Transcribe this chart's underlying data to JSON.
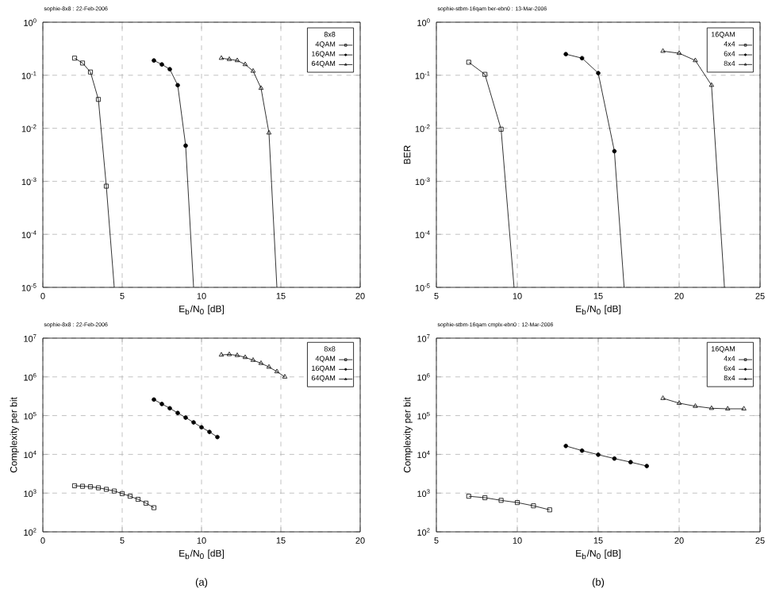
{
  "chart_data": [
    {
      "type": "line",
      "title": "sophie-8x8 : 22-Feb-2006",
      "xlabel": "E$_{b}$/N$_{0}$ [dB]",
      "legend_title": "8x8",
      "log": true,
      "grid": true,
      "legend": "top right",
      "line_style": "solid",
      "xlim": [
        0,
        20
      ],
      "xticks": [
        0,
        5,
        10,
        15,
        20
      ],
      "ylim": [
        1e-05,
        1
      ],
      "yticks": [
        {
          "value": 1e-05,
          "label": "10$^{-5}$"
        },
        {
          "value": 0.0001,
          "label": "10$^{-4}$"
        },
        {
          "value": 0.001,
          "label": "10$^{-3}$"
        },
        {
          "value": 0.01,
          "label": "10$^{-2}$"
        },
        {
          "value": 0.1,
          "label": "10$^{-1}$"
        },
        {
          "value": 1,
          "label": "10$^{0}$"
        }
      ],
      "series": [
        {
          "name": "4QAM",
          "color": "#000000",
          "marker": "square",
          "x": [
            2,
            2.5,
            3,
            3.5,
            4
          ],
          "values": [
            0.21,
            0.17,
            0.115,
            0.035,
            0.00081
          ]
        },
        {
          "name": "16QAM",
          "color": "#000000",
          "marker": "circle",
          "x": [
            7,
            7.5,
            8,
            8.5,
            9
          ],
          "values": [
            0.19,
            0.16,
            0.13,
            0.065,
            0.0047
          ]
        },
        {
          "name": "64QAM",
          "color": "#000000",
          "marker": "triangle",
          "x": [
            11.25,
            11.75,
            12.25,
            12.75,
            13.25,
            13.75,
            14.25
          ],
          "values": [
            0.21,
            0.2,
            0.19,
            0.16,
            0.12,
            0.057,
            0.0082
          ]
        },
        {
          "color": "#000000",
          "marker": "none",
          "x": [
            4,
            4.5
          ],
          "values": [
            0.00081,
            1e-05
          ]
        },
        {
          "color": "#000000",
          "marker": "none",
          "x": [
            9,
            9.5
          ],
          "values": [
            0.0047,
            1e-05
          ]
        },
        {
          "color": "#000000",
          "marker": "none",
          "x": [
            14.25,
            14.75
          ],
          "values": [
            0.0082,
            1e-05
          ]
        }
      ]
    },
    {
      "type": "line",
      "title": "sophie-stbm-16qam ber-ebn0 : 13-Mar-2006",
      "xlabel": "E$_{b}$/N$_{0}$ [dB]",
      "ylabel": "BER",
      "legend_title": "16QAM",
      "log": true,
      "grid": true,
      "legend": "top right",
      "line_style": "solid",
      "xlim": [
        5,
        25
      ],
      "xticks": [
        5,
        10,
        15,
        20,
        25
      ],
      "ylim": [
        1e-05,
        1
      ],
      "yticks": [
        {
          "value": 1e-05,
          "label": "10$^{-5}$"
        },
        {
          "value": 0.0001,
          "label": "10$^{-4}$"
        },
        {
          "value": 0.001,
          "label": "10$^{-3}$"
        },
        {
          "value": 0.01,
          "label": "10$^{-2}$"
        },
        {
          "value": 0.1,
          "label": "10$^{-1}$"
        },
        {
          "value": 1,
          "label": "10$^{0}$"
        }
      ],
      "series": [
        {
          "name": "4x4",
          "color": "#000000",
          "marker": "square",
          "x": [
            7,
            8,
            9
          ],
          "values": [
            0.176,
            0.104,
            0.0096
          ]
        },
        {
          "name": "6x4",
          "color": "#000000",
          "marker": "circle",
          "x": [
            13,
            14,
            15,
            16
          ],
          "values": [
            0.25,
            0.21,
            0.11,
            0.0037
          ]
        },
        {
          "name": "8x4",
          "color": "#000000",
          "marker": "triangle",
          "x": [
            19,
            20,
            21,
            22
          ],
          "values": [
            0.285,
            0.26,
            0.19,
            0.065
          ]
        },
        {
          "color": "#000000",
          "marker": "none",
          "x": [
            9,
            9.8
          ],
          "values": [
            0.0096,
            1e-05
          ]
        },
        {
          "color": "#000000",
          "marker": "none",
          "x": [
            16,
            16.6
          ],
          "values": [
            0.0037,
            1e-05
          ]
        },
        {
          "color": "#000000",
          "marker": "none",
          "x": [
            22,
            22.8
          ],
          "values": [
            0.065,
            1e-05
          ]
        }
      ]
    },
    {
      "type": "line",
      "title": "sophie-8x8 : 22-Feb-2006",
      "xlabel": "E$_{b}$/N$_{0}$ [dB]",
      "ylabel": "Complexity per bit",
      "legend_title": "8x8",
      "log": true,
      "grid": true,
      "legend": "top right",
      "line_style": "solid",
      "annotations": [
        "(a)"
      ],
      "xlim": [
        0,
        20
      ],
      "xticks": [
        0,
        5,
        10,
        15,
        20
      ],
      "ylim": [
        100,
        10000000
      ],
      "yticks": [
        {
          "value": 100,
          "label": "10$^{2}$"
        },
        {
          "value": 1000,
          "label": "10$^{3}$"
        },
        {
          "value": 10000,
          "label": "10$^{4}$"
        },
        {
          "value": 100000,
          "label": "10$^{5}$"
        },
        {
          "value": 1000000,
          "label": "10$^{6}$"
        },
        {
          "value": 10000000,
          "label": "10$^{7}$"
        }
      ],
      "series": [
        {
          "name": "4QAM",
          "color": "#000000",
          "marker": "square",
          "x": [
            2,
            2.5,
            3,
            3.5,
            4,
            4.5,
            5,
            5.5,
            6,
            6.5,
            7
          ],
          "values": [
            1550,
            1500,
            1460,
            1370,
            1250,
            1130,
            970,
            830,
            690,
            550,
            420
          ]
        },
        {
          "name": "16QAM",
          "color": "#000000",
          "marker": "circle",
          "x": [
            7,
            7.5,
            8,
            8.5,
            9,
            9.5,
            10,
            10.5,
            11
          ],
          "values": [
            260000,
            200000,
            155000,
            117000,
            89000,
            67000,
            50000,
            38000,
            28000
          ]
        },
        {
          "name": "64QAM",
          "color": "#000000",
          "marker": "triangle",
          "x": [
            11.25,
            11.75,
            12.25,
            12.75,
            13.25,
            13.75,
            14.25,
            14.75,
            15.25
          ],
          "values": [
            3700000,
            3800000,
            3600000,
            3200000,
            2700000,
            2250000,
            1800000,
            1370000,
            1000000
          ]
        }
      ]
    },
    {
      "type": "line",
      "title": "sophie-stbm-16qam cmplx-ebn0 : 12-Mar-2006",
      "xlabel": "E$_{b}$/N$_{0}$ [dB]",
      "ylabel": "Complexity per bit",
      "legend_title": "16QAM",
      "log": true,
      "grid": true,
      "legend": "top right",
      "line_style": "solid",
      "annotations": [
        "(b)"
      ],
      "xlim": [
        5,
        25
      ],
      "xticks": [
        5,
        10,
        15,
        20,
        25
      ],
      "ylim": [
        100,
        10000000
      ],
      "yticks": [
        {
          "value": 100,
          "label": "10$^{2}$"
        },
        {
          "value": 1000,
          "label": "10$^{3}$"
        },
        {
          "value": 10000,
          "label": "10$^{4}$"
        },
        {
          "value": 100000,
          "label": "10$^{5}$"
        },
        {
          "value": 1000000,
          "label": "10$^{6}$"
        },
        {
          "value": 10000000,
          "label": "10$^{7}$"
        }
      ],
      "series": [
        {
          "name": "4x4",
          "color": "#000000",
          "marker": "square",
          "x": [
            7,
            8,
            9,
            10,
            11,
            12
          ],
          "values": [
            830,
            760,
            650,
            570,
            470,
            370
          ]
        },
        {
          "name": "6x4",
          "color": "#000000",
          "marker": "circle",
          "x": [
            13,
            14,
            15,
            16,
            17,
            18
          ],
          "values": [
            16500,
            12500,
            9800,
            7800,
            6300,
            5000
          ]
        },
        {
          "name": "8x4",
          "color": "#000000",
          "marker": "triangle",
          "x": [
            19,
            20,
            21,
            22,
            23,
            24
          ],
          "values": [
            280000,
            210000,
            175000,
            155000,
            150000,
            150000
          ]
        }
      ]
    }
  ]
}
